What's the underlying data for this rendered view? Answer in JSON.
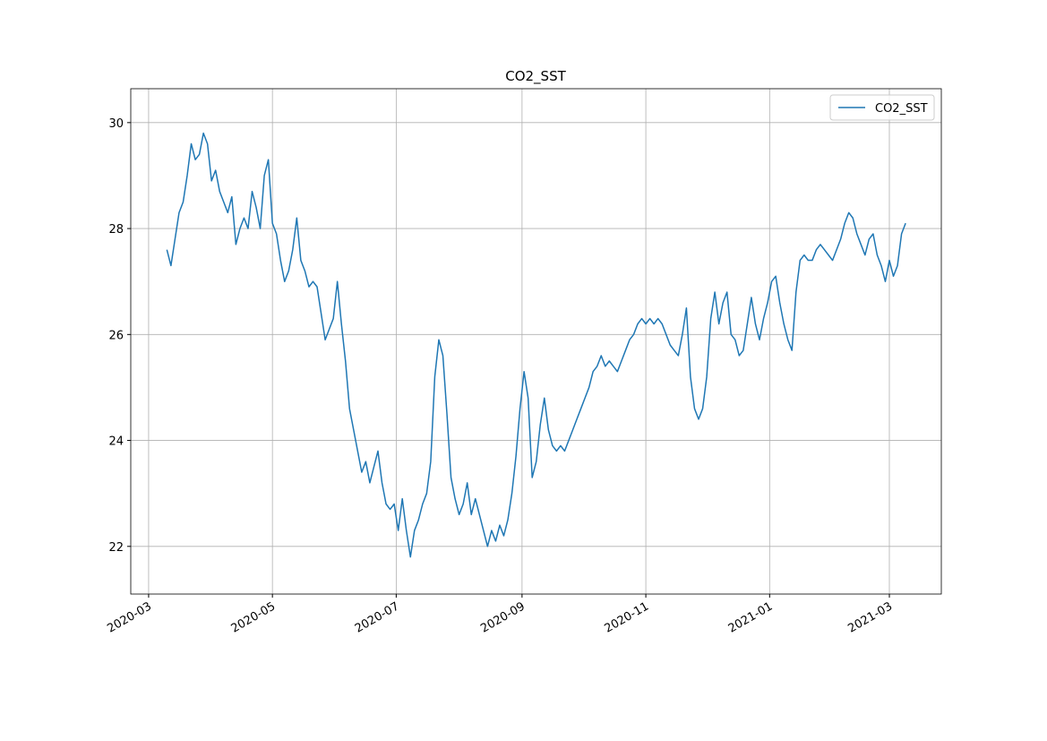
{
  "chart_data": {
    "type": "line",
    "title": "CO2_SST",
    "x": [
      18331,
      18333,
      18335,
      18337,
      18339,
      18341,
      18343,
      18345,
      18347,
      18349,
      18351,
      18353,
      18355,
      18357,
      18359,
      18361,
      18363,
      18365,
      18367,
      18369,
      18371,
      18373,
      18375,
      18377,
      18379,
      18381,
      18383,
      18385,
      18387,
      18389,
      18391,
      18393,
      18395,
      18397,
      18399,
      18401,
      18403,
      18405,
      18407,
      18409,
      18411,
      18413,
      18415,
      18417,
      18419,
      18421,
      18423,
      18425,
      18427,
      18429,
      18431,
      18433,
      18435,
      18437,
      18439,
      18441,
      18443,
      18445,
      18447,
      18449,
      18451,
      18453,
      18455,
      18457,
      18459,
      18461,
      18463,
      18465,
      18467,
      18469,
      18471,
      18473,
      18475,
      18477,
      18479,
      18481,
      18483,
      18485,
      18487,
      18489,
      18491,
      18493,
      18495,
      18497,
      18499,
      18501,
      18503,
      18505,
      18507,
      18509,
      18511,
      18513,
      18515,
      18517,
      18519,
      18521,
      18523,
      18525,
      18527,
      18529,
      18531,
      18533,
      18535,
      18537,
      18539,
      18541,
      18543,
      18545,
      18547,
      18549,
      18551,
      18553,
      18555,
      18557,
      18559,
      18561,
      18563,
      18565,
      18567,
      18569,
      18571,
      18573,
      18575,
      18577,
      18579,
      18581,
      18583,
      18585,
      18587,
      18589,
      18591,
      18593,
      18595,
      18597,
      18599,
      18601,
      18603,
      18605,
      18607,
      18609,
      18611,
      18613,
      18615,
      18617,
      18619,
      18621,
      18623,
      18625,
      18627,
      18629,
      18631,
      18633,
      18635,
      18637,
      18639,
      18641,
      18643,
      18645,
      18647,
      18649,
      18651,
      18653,
      18655,
      18657,
      18659,
      18661,
      18663,
      18665,
      18667,
      18669,
      18671,
      18673,
      18675,
      18677,
      18679,
      18681,
      18683,
      18685,
      18687,
      18689,
      18691,
      18693,
      18695
    ],
    "series": [
      {
        "name": "CO2_SST",
        "color": "#1f77b4",
        "values": [
          27.6,
          27.3,
          27.8,
          28.3,
          28.5,
          29.0,
          29.6,
          29.3,
          29.4,
          29.8,
          29.6,
          28.9,
          29.1,
          28.7,
          28.5,
          28.3,
          28.6,
          27.7,
          28.0,
          28.2,
          28.0,
          28.7,
          28.4,
          28.0,
          29.0,
          29.3,
          28.1,
          27.9,
          27.4,
          27.0,
          27.2,
          27.6,
          28.2,
          27.4,
          27.2,
          26.9,
          27.0,
          26.9,
          26.4,
          25.9,
          26.1,
          26.3,
          27.0,
          26.2,
          25.5,
          24.6,
          24.2,
          23.8,
          23.4,
          23.6,
          23.2,
          23.5,
          23.8,
          23.2,
          22.8,
          22.7,
          22.8,
          22.3,
          22.9,
          22.3,
          21.8,
          22.3,
          22.5,
          22.8,
          23.0,
          23.6,
          25.2,
          25.9,
          25.6,
          24.5,
          23.3,
          22.9,
          22.6,
          22.8,
          23.2,
          22.6,
          22.9,
          22.6,
          22.3,
          22.0,
          22.3,
          22.1,
          22.4,
          22.2,
          22.5,
          23.0,
          23.7,
          24.6,
          25.3,
          24.8,
          23.3,
          23.6,
          24.3,
          24.8,
          24.2,
          23.9,
          23.8,
          23.9,
          23.8,
          24.0,
          24.2,
          24.4,
          24.6,
          24.8,
          25.0,
          25.3,
          25.4,
          25.6,
          25.4,
          25.5,
          25.4,
          25.3,
          25.5,
          25.7,
          25.9,
          26.0,
          26.2,
          26.3,
          26.2,
          26.3,
          26.2,
          26.3,
          26.2,
          26.0,
          25.8,
          25.7,
          25.6,
          26.0,
          26.5,
          25.2,
          24.6,
          24.4,
          24.6,
          25.2,
          26.3,
          26.8,
          26.2,
          26.6,
          26.8,
          26.0,
          25.9,
          25.6,
          25.7,
          26.2,
          26.7,
          26.2,
          25.9,
          26.3,
          26.6,
          27.0,
          27.1,
          26.6,
          26.2,
          25.9,
          25.7,
          26.8,
          27.4,
          27.5,
          27.4,
          27.4,
          27.6,
          27.7,
          27.6,
          27.5,
          27.4,
          27.6,
          27.8,
          28.1,
          28.3,
          28.2,
          27.9,
          27.7,
          27.5,
          27.8,
          27.9,
          27.5,
          27.3,
          27.0,
          27.4,
          27.1,
          27.3,
          27.9,
          28.1
        ]
      }
    ],
    "xlim": [
      18313.2,
      18712.6
    ],
    "xticks": [
      {
        "value": 18322,
        "label": "2020-03"
      },
      {
        "value": 18383,
        "label": "2020-05"
      },
      {
        "value": 18444,
        "label": "2020-07"
      },
      {
        "value": 18506,
        "label": "2020-09"
      },
      {
        "value": 18567,
        "label": "2020-11"
      },
      {
        "value": 18628,
        "label": "2021-01"
      },
      {
        "value": 18687,
        "label": "2021-03"
      }
    ],
    "ylim": [
      21.1,
      30.64
    ],
    "yticks": [
      22,
      24,
      26,
      28,
      30
    ],
    "grid": true,
    "legend": "upper right"
  }
}
